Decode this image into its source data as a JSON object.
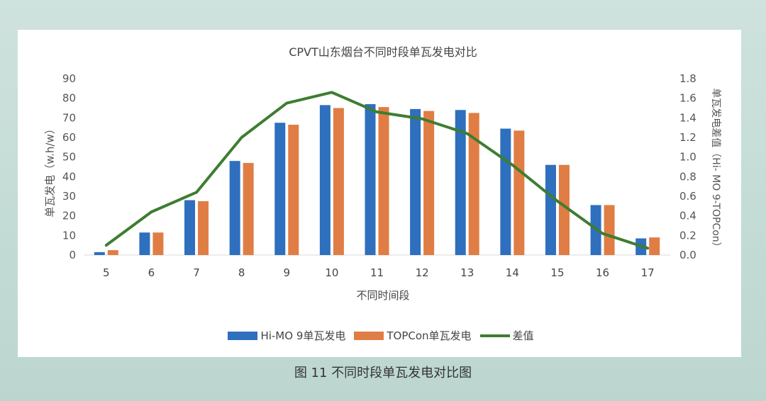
{
  "caption": "图 11 不同时段单瓦发电对比图",
  "chart_data": {
    "type": "bar",
    "title": "CPVT山东烟台不同时段单瓦发电对比",
    "xlabel": "不同时间段",
    "ylabel": "单瓦发电（w.h/w）",
    "y2label": "单瓦发电差值（Hi- MO 9-TOPCon）",
    "categories": [
      "5",
      "6",
      "7",
      "8",
      "9",
      "10",
      "11",
      "12",
      "13",
      "14",
      "15",
      "16",
      "17"
    ],
    "ylim": [
      0,
      90
    ],
    "yticks": [
      "0",
      "10",
      "20",
      "30",
      "40",
      "50",
      "60",
      "70",
      "80",
      "90"
    ],
    "y2lim": [
      0,
      1.8
    ],
    "y2ticks": [
      "0.0",
      "0.2",
      "0.4",
      "0.6",
      "0.8",
      "1.0",
      "1.2",
      "1.4",
      "1.6",
      "1.8"
    ],
    "series": [
      {
        "name": "Hi-MO 9单瓦发电",
        "type": "bar",
        "color": "#2e6fbe",
        "values": [
          1.5,
          11.5,
          28,
          48,
          67.5,
          76.5,
          77,
          74.5,
          74,
          64.5,
          46,
          25.5,
          8.5
        ]
      },
      {
        "name": "TOPCon单瓦发电",
        "type": "bar",
        "color": "#e07d45",
        "values": [
          2.5,
          11.5,
          27.5,
          47,
          66.5,
          75,
          75.5,
          73.5,
          72.5,
          63.5,
          46,
          25.5,
          9
        ]
      },
      {
        "name": "差值",
        "type": "line",
        "axis": "right",
        "color": "#3e7d31",
        "values": [
          0.1,
          0.44,
          0.64,
          1.2,
          1.55,
          1.66,
          1.46,
          1.39,
          1.24,
          0.92,
          0.55,
          0.22,
          0.07
        ]
      }
    ],
    "legend": "bottom"
  }
}
